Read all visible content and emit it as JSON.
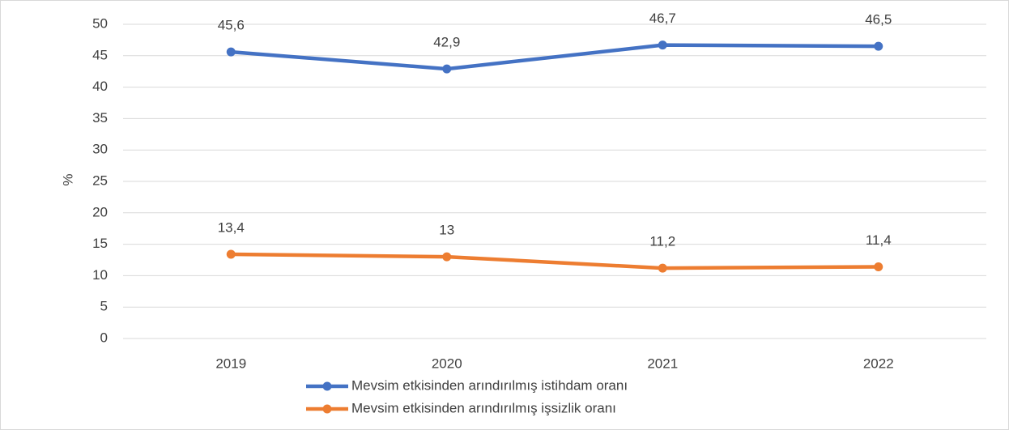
{
  "chart_data": {
    "type": "line",
    "categories": [
      "2019",
      "2020",
      "2021",
      "2022"
    ],
    "series": [
      {
        "name": "Mevsim etkisinden arındırılmış istihdam oranı",
        "color": "#4472c4",
        "values": [
          45.6,
          42.9,
          46.7,
          46.5
        ],
        "value_labels": [
          "45,6",
          "42,9",
          "46,7",
          "46,5"
        ]
      },
      {
        "name": "Mevsim etkisinden arındırılmış işsizlik oranı",
        "color": "#ed7d31",
        "values": [
          13.4,
          13,
          11.2,
          11.4
        ],
        "value_labels": [
          "13,4",
          "13",
          "11,2",
          "11,4"
        ]
      }
    ],
    "y_label": "%",
    "ylim": [
      0,
      50
    ],
    "yticks": [
      0,
      5,
      10,
      15,
      20,
      25,
      30,
      35,
      40,
      45,
      50
    ],
    "grid": true,
    "legend": "bottom"
  }
}
